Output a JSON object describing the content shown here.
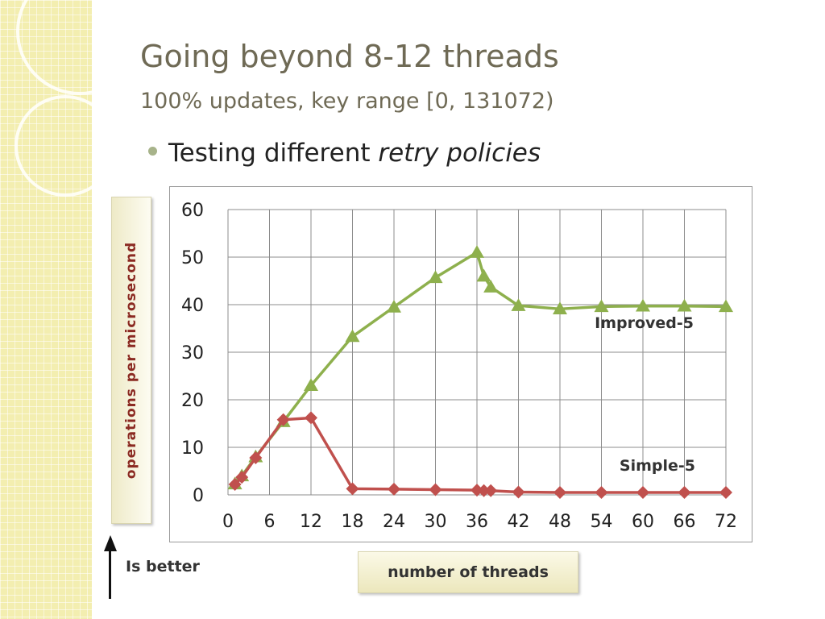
{
  "slide": {
    "title": "Going beyond 8-12 threads",
    "subtitle": "100% updates, key range [0, 131072)",
    "bullet": {
      "text_plain": "Testing different ",
      "text_italic": "retry policies"
    },
    "better_label": "Is better",
    "accent_color": "#6f6a55",
    "strip_color": "#f3eeb0"
  },
  "chart_data": {
    "type": "line",
    "title": "",
    "xlabel": "number of threads",
    "ylabel": "operations per microsecond",
    "xlim": [
      0,
      72
    ],
    "ylim": [
      0,
      60
    ],
    "x_ticks": [
      0,
      6,
      12,
      18,
      24,
      30,
      36,
      42,
      48,
      54,
      60,
      66,
      72
    ],
    "y_ticks": [
      0,
      10,
      20,
      30,
      40,
      50,
      60
    ],
    "grid": true,
    "series": [
      {
        "name": "Improved-5",
        "color": "#8eb04d",
        "marker": "triangle",
        "x": [
          1,
          2,
          4,
          8,
          12,
          18,
          24,
          30,
          36,
          37,
          38,
          42,
          48,
          54,
          60,
          66,
          72
        ],
        "y": [
          2.3,
          4,
          8,
          15.4,
          23,
          33.3,
          39.5,
          45.7,
          51,
          46,
          43.7,
          39.8,
          39.1,
          39.6,
          39.7,
          39.7,
          39.6
        ]
      },
      {
        "name": "Simple-5",
        "color": "#c0504d",
        "marker": "diamond",
        "x": [
          1,
          2,
          4,
          8,
          12,
          18,
          24,
          30,
          36,
          37,
          38,
          42,
          48,
          54,
          60,
          66,
          72
        ],
        "y": [
          2.2,
          3.7,
          7.8,
          15.8,
          16.2,
          1.3,
          1.2,
          1.1,
          1.0,
          0.9,
          0.9,
          0.6,
          0.5,
          0.5,
          0.5,
          0.5,
          0.5
        ]
      }
    ]
  }
}
